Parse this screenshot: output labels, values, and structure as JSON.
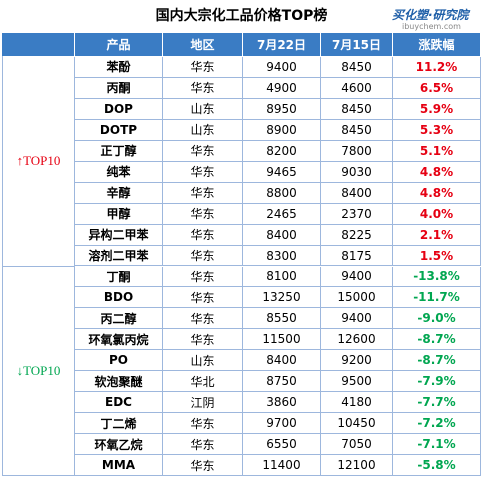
{
  "title": "国内大宗化工品价格TOP榜",
  "logo": {
    "name": "买化塑·研究院",
    "site": "ibuychem.com"
  },
  "table": {
    "header": [
      "产品",
      "地区",
      "7月22日",
      "7月15日",
      "涨跌幅"
    ],
    "groups": [
      {
        "label": "↑TOP10",
        "color": "#e60012",
        "rows": [
          [
            "苯酚",
            "华东",
            "9400",
            "8450",
            "11.2%"
          ],
          [
            "丙酮",
            "华东",
            "4900",
            "4600",
            "6.5%"
          ],
          [
            "DOP",
            "山东",
            "8950",
            "8450",
            "5.9%"
          ],
          [
            "DOTP",
            "山东",
            "8900",
            "8450",
            "5.3%"
          ],
          [
            "正丁醇",
            "华东",
            "8200",
            "7800",
            "5.1%"
          ],
          [
            "纯苯",
            "华东",
            "9465",
            "9030",
            "4.8%"
          ],
          [
            "辛醇",
            "华东",
            "8800",
            "8400",
            "4.8%"
          ],
          [
            "甲醇",
            "华东",
            "2465",
            "2370",
            "4.0%"
          ],
          [
            "异构二甲苯",
            "华东",
            "8400",
            "8225",
            "2.1%"
          ],
          [
            "溶剂二甲苯",
            "华东",
            "8300",
            "8175",
            "1.5%"
          ]
        ]
      },
      {
        "label": "↓TOP10",
        "color": "#00a650",
        "rows": [
          [
            "丁酮",
            "华东",
            "8100",
            "9400",
            "-13.8%"
          ],
          [
            "BDO",
            "华东",
            "13250",
            "15000",
            "-11.7%"
          ],
          [
            "丙二醇",
            "华东",
            "8550",
            "9400",
            "-9.0%"
          ],
          [
            "环氧氯丙烷",
            "华东",
            "11500",
            "12600",
            "-8.7%"
          ],
          [
            "PO",
            "山东",
            "8400",
            "9200",
            "-8.7%"
          ],
          [
            "软泡聚醚",
            "华北",
            "8750",
            "9500",
            "-7.9%"
          ],
          [
            "EDC",
            "江阴",
            "3860",
            "4180",
            "-7.7%"
          ],
          [
            "丁二烯",
            "华东",
            "9700",
            "10450",
            "-7.2%"
          ],
          [
            "环氧乙烷",
            "华东",
            "6550",
            "7050",
            "-7.1%"
          ],
          [
            "MMA",
            "华东",
            "11400",
            "12100",
            "-5.8%"
          ]
        ]
      }
    ]
  }
}
